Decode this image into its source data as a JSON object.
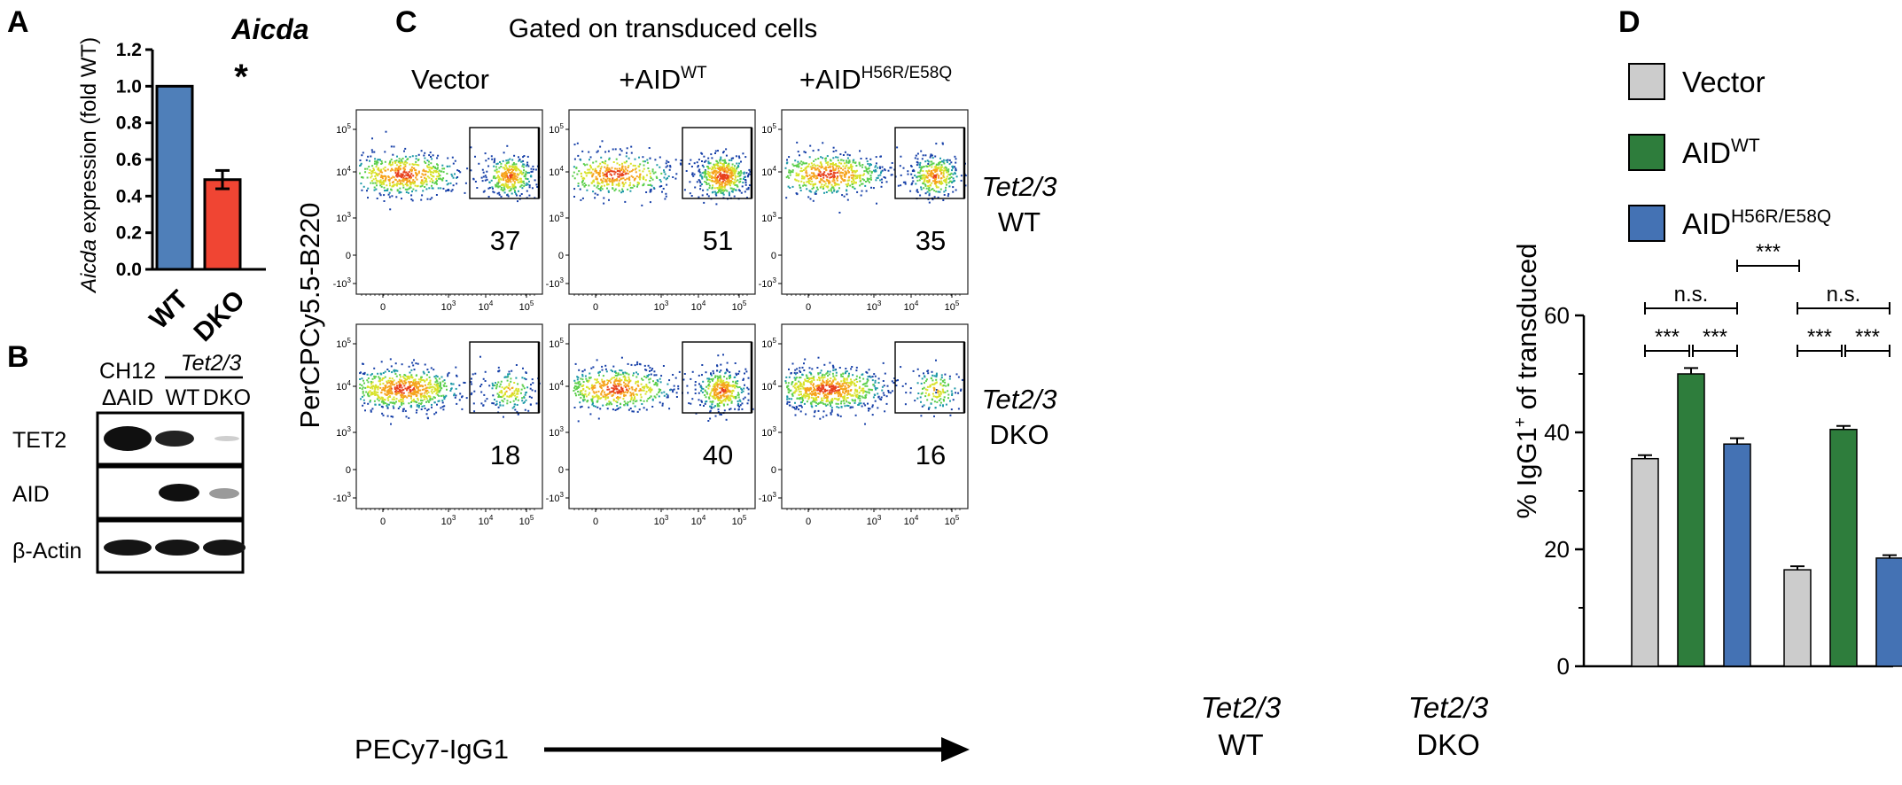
{
  "figure": {
    "panel_letters": [
      "A",
      "B",
      "C",
      "D"
    ]
  },
  "panel_a": {
    "chart_title": "Aicda",
    "ylabel_italic": "Aicda",
    "ylabel_rest": " expression (fold WT)",
    "significance": "*",
    "colors": {
      "WT": "#4f7fb9",
      "DKO": "#f04533"
    }
  },
  "panel_b": {
    "header_ch12_line1": "CH12",
    "header_ch12_line2": "ΔAID",
    "header_group": "Tet2/3",
    "lane_labels": [
      "WT",
      "DKO"
    ],
    "blot_labels": [
      "TET2",
      "AID",
      "β-Actin"
    ]
  },
  "panel_c": {
    "title": "Gated on transduced cells",
    "col_headers": [
      {
        "base": "Vector",
        "sup": ""
      },
      {
        "base": "+AID",
        "sup": "WT"
      },
      {
        "base": "+AID",
        "sup": "H56R/E58Q"
      }
    ],
    "row_labels": [
      {
        "italic": "Tet2/3",
        "rest": "WT"
      },
      {
        "italic": "Tet2/3",
        "rest": "DKO"
      }
    ],
    "y_axis_label": "PerCPCy5.5-B220",
    "x_axis_label": "PECy7-IgG1",
    "gate_percentages": [
      [
        "37",
        "51",
        "35"
      ],
      [
        "18",
        "40",
        "16"
      ]
    ],
    "y_tick_labels": [
      "10",
      "10",
      "10",
      "0",
      "-10"
    ],
    "y_tick_exps": [
      "5",
      "4",
      "3",
      "",
      "3"
    ],
    "x_tick_labels": [
      "0",
      "10",
      "10",
      "10"
    ],
    "x_tick_exps": [
      "",
      "3",
      "4",
      "5"
    ]
  },
  "panel_d": {
    "ylabel_pre": "% IgG1",
    "ylabel_sup": "+",
    "ylabel_post": " of transduced",
    "group_labels": [
      {
        "italic": "Tet2/3",
        "rest": "WT"
      },
      {
        "italic": "Tet2/3",
        "rest": "DKO"
      }
    ],
    "legend": [
      {
        "base": "Vector",
        "sup": "",
        "color": "#cccccc"
      },
      {
        "base": "AID",
        "sup": "WT",
        "color": "#2e7d3c"
      },
      {
        "base": "AID",
        "sup": "H56R/E58Q",
        "color": "#4472b4"
      }
    ],
    "significance_labels": [
      "n.s.",
      "***",
      "***",
      "n.s.",
      "***",
      "***",
      "***"
    ]
  },
  "chart_data": [
    {
      "type": "bar",
      "title": "Aicda",
      "categories": [
        "WT",
        "DKO"
      ],
      "values": [
        1.0,
        0.49
      ],
      "errors": [
        0.0,
        0.05
      ],
      "ylabel": "Aicda expression (fold WT)",
      "ylim": [
        0,
        1.2
      ],
      "yticks": [
        0.0,
        0.2,
        0.4,
        0.6,
        0.8,
        1.0,
        1.2
      ],
      "ytick_labels": [
        "0.0",
        "0.2",
        "0.4",
        "0.6",
        "0.8",
        "1.0",
        "1.2"
      ]
    },
    {
      "type": "bar",
      "categories": [
        "Tet2/3 WT",
        "Tet2/3 DKO"
      ],
      "series": [
        {
          "name": "Vector",
          "values": [
            35.5,
            16.5
          ],
          "errors": [
            0.6,
            0.6
          ]
        },
        {
          "name": "AIDWT",
          "values": [
            50.0,
            40.5
          ],
          "errors": [
            1.0,
            0.6
          ]
        },
        {
          "name": "AIDH56R/E58Q",
          "values": [
            38.0,
            18.5
          ],
          "errors": [
            1.0,
            0.5
          ]
        }
      ],
      "ylabel": "% IgG1+ of transduced",
      "ylim": [
        0,
        60
      ],
      "yticks": [
        0,
        20,
        40,
        60
      ],
      "ytick_labels": [
        "0",
        "20",
        "40",
        "60"
      ]
    }
  ]
}
